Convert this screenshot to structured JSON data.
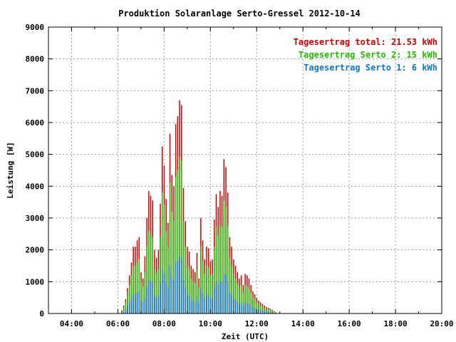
{
  "chart_data": {
    "type": "bar",
    "title": "Produktion Solaranlage Serto-Gressel 2012-10-14",
    "xlabel": "Zeit (UTC)",
    "ylabel": "Leistung [W]",
    "xlim": [
      3,
      20
    ],
    "ylim": [
      0,
      9000
    ],
    "grid": true,
    "legend_position": "top-right",
    "x_ticks": [
      "04:00",
      "06:00",
      "08:00",
      "10:00",
      "12:00",
      "14:00",
      "16:00",
      "18:00",
      "20:00"
    ],
    "x_tick_values": [
      4,
      6,
      8,
      10,
      12,
      14,
      16,
      18,
      20
    ],
    "y_ticks": [
      "0",
      "1000",
      "2000",
      "3000",
      "4000",
      "5000",
      "6000",
      "7000",
      "8000",
      "9000"
    ],
    "y_tick_values": [
      0,
      1000,
      2000,
      3000,
      4000,
      5000,
      6000,
      7000,
      8000,
      9000
    ],
    "colors": {
      "total": "#cc0000",
      "serto2": "#22bb00",
      "serto1": "#1177cc"
    },
    "legend": [
      {
        "key": "total",
        "label": "Tagesertrag total: 21.53 kWh"
      },
      {
        "key": "serto2",
        "label": "Tagesertrag Serto 2: 15 kWh"
      },
      {
        "key": "serto1",
        "label": "Tagesertrag Serto 1: 6 kWh"
      }
    ],
    "time_start_hours": 6.17,
    "time_step_minutes": 5,
    "series": [
      {
        "key": "total",
        "values": [
          100,
          250,
          450,
          800,
          1200,
          1600,
          2100,
          2100,
          2300,
          2400,
          1300,
          1100,
          1800,
          3000,
          3850,
          3700,
          3550,
          2000,
          1750,
          2000,
          3450,
          5250,
          4650,
          3600,
          2850,
          5650,
          4350,
          4000,
          5950,
          6200,
          6700,
          6550,
          3950,
          2900,
          2100,
          1950,
          1500,
          1400,
          1300,
          1900,
          1100,
          3000,
          2300,
          1700,
          2100,
          2050,
          1650,
          1700,
          2950,
          3750,
          3350,
          3850,
          3700,
          4850,
          4600,
          3800,
          2400,
          2100,
          1700,
          1500,
          1300,
          1100,
          1200,
          900,
          1250,
          1200,
          1100,
          900,
          700,
          600,
          500,
          400,
          350,
          300,
          250,
          200,
          180,
          150,
          120,
          80,
          40
        ]
      },
      {
        "key": "serto2",
        "values": [
          80,
          200,
          350,
          650,
          900,
          1200,
          1500,
          1500,
          1600,
          1700,
          1000,
          850,
          1300,
          2100,
          2600,
          2500,
          2400,
          1400,
          1250,
          1400,
          2400,
          3800,
          3400,
          2600,
          2100,
          4100,
          3200,
          2900,
          4300,
          4500,
          4900,
          4800,
          2900,
          2100,
          1500,
          1400,
          1100,
          1000,
          950,
          1350,
          800,
          2100,
          1650,
          1250,
          1500,
          1450,
          1200,
          1250,
          2100,
          2750,
          2450,
          2800,
          2700,
          3550,
          3350,
          2750,
          1750,
          1500,
          1250,
          1100,
          950,
          800,
          900,
          650,
          900,
          850,
          800,
          650,
          500,
          450,
          350,
          300,
          250,
          220,
          180,
          150,
          130,
          110,
          90,
          60,
          30
        ]
      },
      {
        "key": "serto1",
        "values": [
          30,
          70,
          120,
          220,
          350,
          450,
          600,
          600,
          650,
          700,
          400,
          350,
          500,
          850,
          1050,
          1000,
          1000,
          550,
          500,
          550,
          950,
          1400,
          1250,
          1000,
          800,
          1500,
          1150,
          1050,
          1600,
          1650,
          1800,
          1750,
          1050,
          800,
          600,
          550,
          420,
          400,
          380,
          520,
          320,
          800,
          620,
          480,
          600,
          580,
          460,
          480,
          800,
          1000,
          900,
          1000,
          1000,
          1250,
          1200,
          1000,
          650,
          580,
          480,
          420,
          360,
          300,
          340,
          250,
          340,
          320,
          300,
          250,
          200,
          170,
          140,
          120,
          100,
          90,
          70,
          60,
          50,
          40,
          35,
          25,
          12
        ]
      }
    ]
  }
}
